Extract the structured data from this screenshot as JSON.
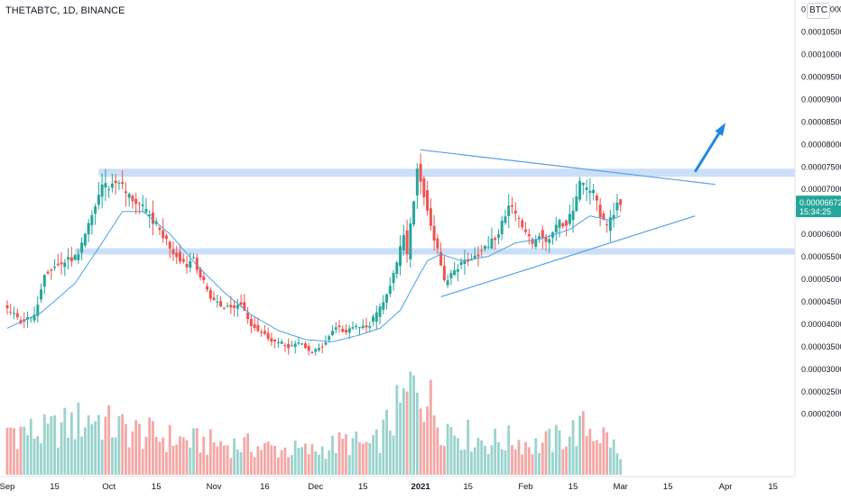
{
  "header": {
    "symbol": "THETABTC, 1D, BINANCE",
    "currency_badge": "BTC"
  },
  "colors": {
    "up": "#26a69a",
    "down": "#ef5350",
    "vol_up": "#9ad3cd",
    "vol_down": "#f3a7a5",
    "ma": "#4aa3df",
    "zone": "#c5dcf7",
    "line": "#5a9fe3",
    "arrow": "#1e88e5",
    "label_bg": "#26a69a",
    "axis_text": "#131722"
  },
  "price_label": {
    "price": "0.00006672",
    "countdown": "15:34:25"
  },
  "chart_data": {
    "type": "candlestick",
    "title": "THETABTC, 1D, BINANCE",
    "y_axis": {
      "ticks": [
        0.00011,
        0.000105,
        0.0001,
        9.5e-05,
        9e-05,
        8.5e-05,
        8e-05,
        7.5e-05,
        7e-05,
        6.5e-05,
        6e-05,
        5.5e-05,
        5e-05,
        4.5e-05,
        4e-05,
        3.5e-05,
        3e-05,
        2.5e-05,
        2e-05
      ],
      "tick_labels": [
        "0.00011000",
        "0.00010500",
        "0.00010000",
        "0.00009500",
        "0.00009000",
        "0.00008500",
        "0.00008000",
        "0.00007500",
        "0.00007000",
        "0.00006500",
        "0.00006000",
        "0.00005500",
        "0.00005000",
        "0.00004500",
        "0.00004000",
        "0.00003500",
        "0.00003000",
        "0.00002500",
        "0.00002000"
      ]
    },
    "x_axis": {
      "ticks": [
        {
          "label": "Sep",
          "day": 0,
          "bold": false
        },
        {
          "label": "15",
          "day": 14,
          "bold": false
        },
        {
          "label": "Oct",
          "day": 30,
          "bold": false
        },
        {
          "label": "15",
          "day": 44,
          "bold": false
        },
        {
          "label": "Nov",
          "day": 61,
          "bold": false
        },
        {
          "label": "16",
          "day": 76,
          "bold": false
        },
        {
          "label": "Dec",
          "day": 91,
          "bold": false
        },
        {
          "label": "15",
          "day": 105,
          "bold": false
        },
        {
          "label": "2021",
          "day": 122,
          "bold": true
        },
        {
          "label": "15",
          "day": 136,
          "bold": false
        },
        {
          "label": "Feb",
          "day": 153,
          "bold": false
        },
        {
          "label": "15",
          "day": 167,
          "bold": false
        },
        {
          "label": "Mar",
          "day": 181,
          "bold": false
        },
        {
          "label": "15",
          "day": 195,
          "bold": false
        },
        {
          "label": "Apr",
          "day": 212,
          "bold": false
        },
        {
          "label": "15",
          "day": 226,
          "bold": false
        }
      ]
    },
    "start_date": "2020-08-31",
    "ohlc_anchors": [
      [
        0,
        4.4e-05
      ],
      [
        5,
        4.05e-05
      ],
      [
        9,
        4.15e-05
      ],
      [
        12,
        5.15e-05
      ],
      [
        16,
        5.3e-05
      ],
      [
        20,
        5.45e-05
      ],
      [
        22,
        5.5e-05
      ],
      [
        26,
        6.4e-05
      ],
      [
        29,
        7.1e-05
      ],
      [
        31,
        7.05e-05
      ],
      [
        34,
        7.2e-05
      ],
      [
        36,
        6.9e-05
      ],
      [
        40,
        6.65e-05
      ],
      [
        44,
        6.3e-05
      ],
      [
        48,
        5.85e-05
      ],
      [
        50,
        5.6e-05
      ],
      [
        54,
        5.3e-05
      ],
      [
        56,
        5.5e-05
      ],
      [
        58,
        5.05e-05
      ],
      [
        61,
        4.6e-05
      ],
      [
        64,
        4.4e-05
      ],
      [
        67,
        4.35e-05
      ],
      [
        70,
        4.45e-05
      ],
      [
        73,
        4e-05
      ],
      [
        76,
        3.8e-05
      ],
      [
        80,
        3.6e-05
      ],
      [
        84,
        3.5e-05
      ],
      [
        88,
        3.55e-05
      ],
      [
        91,
        3.35e-05
      ],
      [
        94,
        3.5e-05
      ],
      [
        98,
        3.95e-05
      ],
      [
        101,
        3.8e-05
      ],
      [
        104,
        3.95e-05
      ],
      [
        107,
        3.9e-05
      ],
      [
        110,
        4.2e-05
      ],
      [
        113,
        4.7e-05
      ],
      [
        116,
        5.3e-05
      ],
      [
        118,
        6e-05
      ],
      [
        119,
        5.5e-05
      ],
      [
        121,
        6.8e-05
      ],
      [
        122,
        7.45e-05
      ],
      [
        124,
        6.9e-05
      ],
      [
        126,
        6.2e-05
      ],
      [
        128,
        5.6e-05
      ],
      [
        130,
        4.9e-05
      ],
      [
        133,
        5.2e-05
      ],
      [
        137,
        5.45e-05
      ],
      [
        141,
        5.6e-05
      ],
      [
        145,
        5.9e-05
      ],
      [
        147,
        6.2e-05
      ],
      [
        149,
        6.7e-05
      ],
      [
        152,
        6.3e-05
      ],
      [
        154,
        6e-05
      ],
      [
        156,
        5.8e-05
      ],
      [
        158,
        6e-05
      ],
      [
        160,
        5.85e-05
      ],
      [
        162,
        6e-05
      ],
      [
        164,
        6.3e-05
      ],
      [
        166,
        6.2e-05
      ],
      [
        168,
        6.5e-05
      ],
      [
        170,
        7.1e-05
      ],
      [
        172,
        7e-05
      ],
      [
        174,
        6.9e-05
      ],
      [
        176,
        6.4e-05
      ],
      [
        178,
        6.15e-05
      ],
      [
        180,
        6.5e-05
      ],
      [
        181,
        6.67e-05
      ]
    ],
    "ma_anchors": [
      [
        0,
        3.9e-05
      ],
      [
        10,
        4.25e-05
      ],
      [
        20,
        4.9e-05
      ],
      [
        28,
        5.8e-05
      ],
      [
        34,
        6.5e-05
      ],
      [
        40,
        6.5e-05
      ],
      [
        48,
        6e-05
      ],
      [
        56,
        5.3e-05
      ],
      [
        64,
        4.7e-05
      ],
      [
        72,
        4.2e-05
      ],
      [
        80,
        3.85e-05
      ],
      [
        88,
        3.65e-05
      ],
      [
        96,
        3.6e-05
      ],
      [
        104,
        3.75e-05
      ],
      [
        110,
        3.9e-05
      ],
      [
        116,
        4.3e-05
      ],
      [
        121,
        5e-05
      ],
      [
        124,
        5.4e-05
      ],
      [
        128,
        5.55e-05
      ],
      [
        134,
        5.4e-05
      ],
      [
        142,
        5.5e-05
      ],
      [
        150,
        5.8e-05
      ],
      [
        158,
        5.9e-05
      ],
      [
        166,
        6.1e-05
      ],
      [
        172,
        6.4e-05
      ],
      [
        178,
        6.3e-05
      ],
      [
        181,
        6.4e-05
      ]
    ],
    "volume_anchors": [
      [
        0,
        0.4
      ],
      [
        10,
        0.35
      ],
      [
        18,
        0.42
      ],
      [
        26,
        0.5
      ],
      [
        30,
        0.42
      ],
      [
        40,
        0.35
      ],
      [
        50,
        0.3
      ],
      [
        60,
        0.27
      ],
      [
        70,
        0.25
      ],
      [
        80,
        0.22
      ],
      [
        90,
        0.2
      ],
      [
        100,
        0.28
      ],
      [
        108,
        0.24
      ],
      [
        113,
        0.45
      ],
      [
        118,
        0.65
      ],
      [
        121,
        0.85
      ],
      [
        124,
        0.65
      ],
      [
        128,
        0.45
      ],
      [
        134,
        0.35
      ],
      [
        142,
        0.28
      ],
      [
        150,
        0.3
      ],
      [
        156,
        0.25
      ],
      [
        162,
        0.3
      ],
      [
        168,
        0.38
      ],
      [
        172,
        0.4
      ],
      [
        178,
        0.3
      ],
      [
        181,
        0.12
      ]
    ],
    "zones": [
      {
        "name": "resistance",
        "from": 7.27e-05,
        "to": 7.45e-05,
        "start_day": 27
      },
      {
        "name": "support",
        "from": 5.54e-05,
        "to": 5.68e-05,
        "start_day": 20
      }
    ],
    "trendlines": [
      {
        "name": "upper",
        "from": [
          122,
          7.87e-05
        ],
        "to": [
          209,
          7.1e-05
        ]
      },
      {
        "name": "lower",
        "from": [
          128,
          4.6e-05
        ],
        "to": [
          203,
          6.4e-05
        ]
      }
    ],
    "arrow": {
      "from": [
        203,
        7.38e-05
      ],
      "to": [
        212,
        8.47e-05
      ]
    },
    "current_price": 6.672e-05
  }
}
